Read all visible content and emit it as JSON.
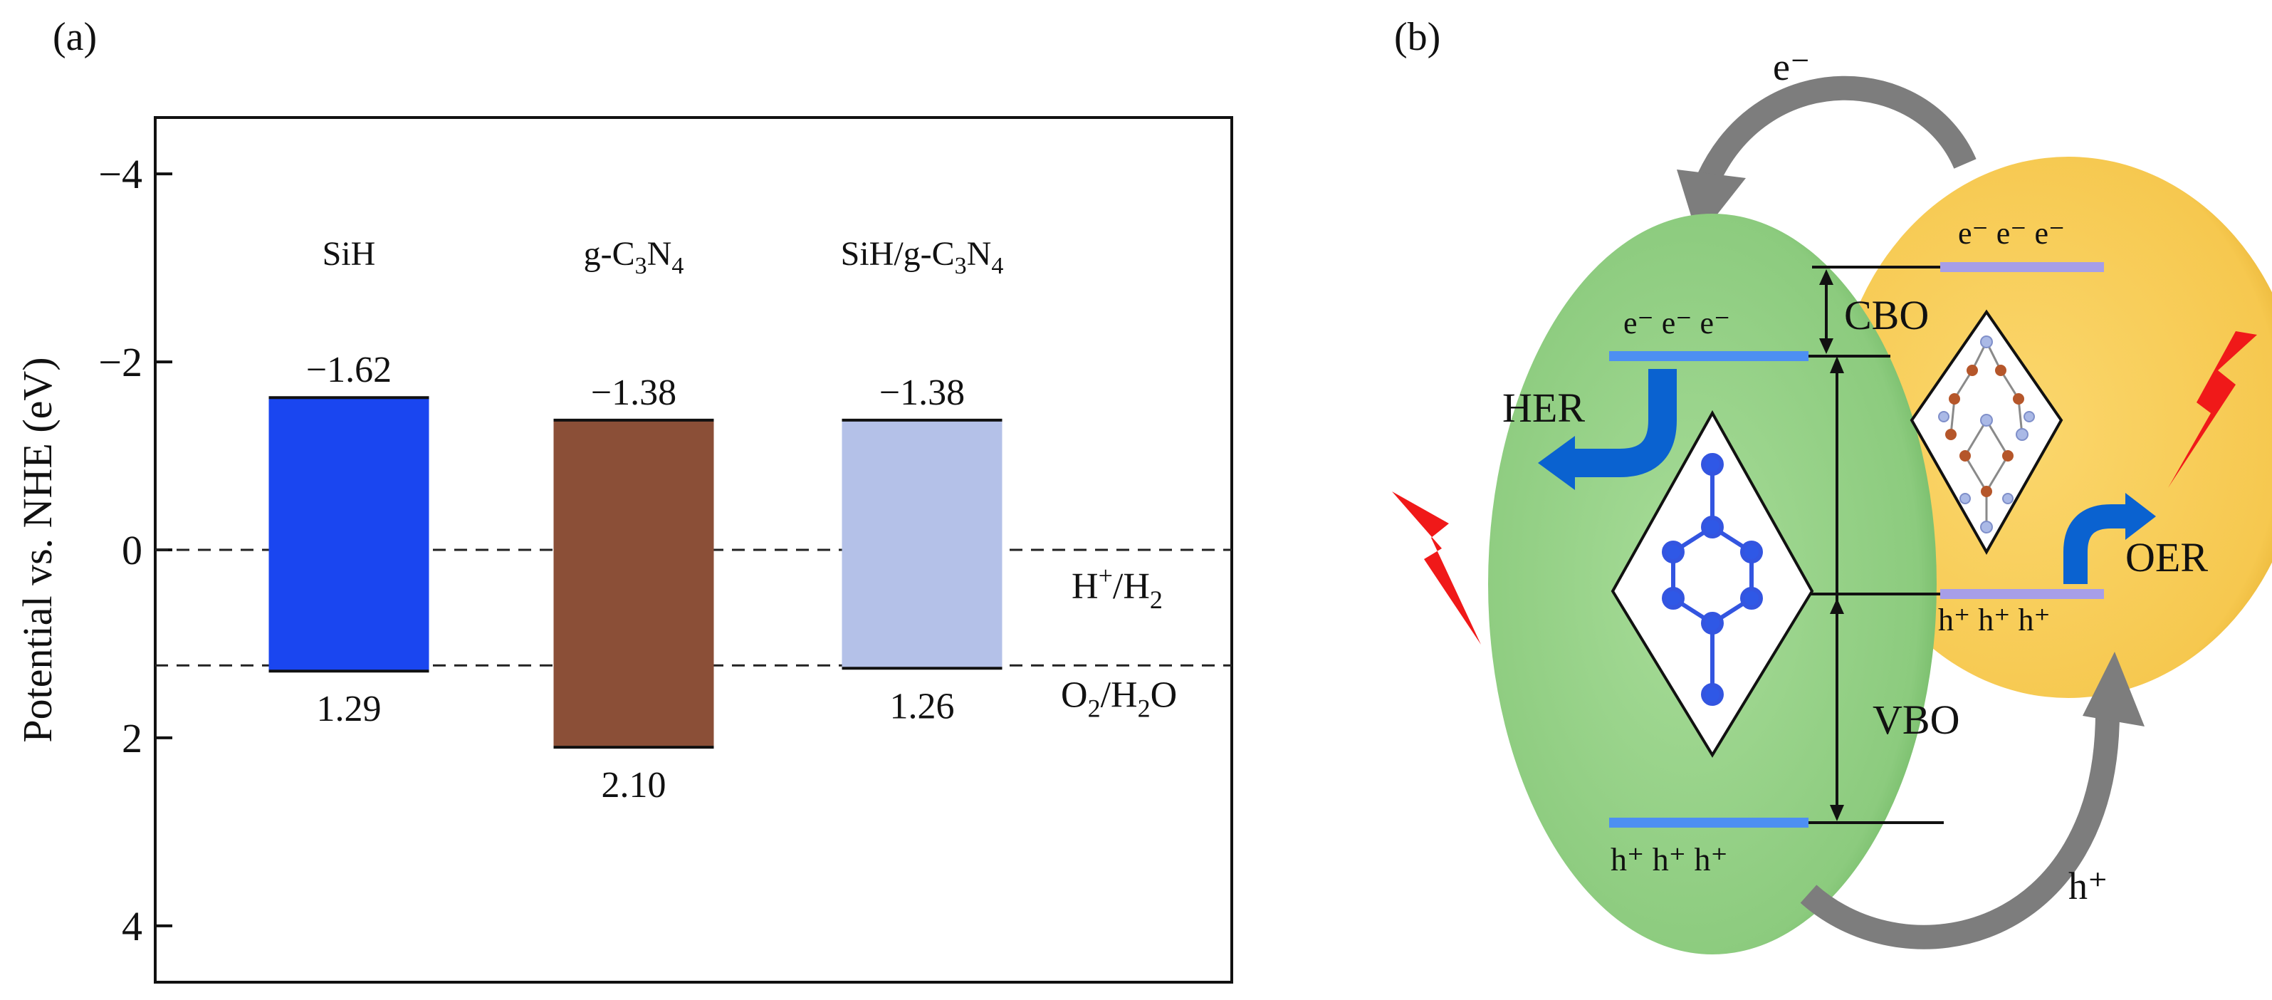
{
  "panels": {
    "a_label": "(a)",
    "b_label": "(b)"
  },
  "chart_data": {
    "type": "bar",
    "title": "",
    "ylabel": "Potential vs. NHE (eV)",
    "ylim": [
      -4.6,
      4.6
    ],
    "y_inverted": true,
    "yticks": [
      -4,
      -2,
      0,
      2,
      4
    ],
    "ytick_labels": [
      "−4",
      "−2",
      "0",
      "2",
      "4"
    ],
    "grid": false,
    "legend": "none",
    "categories": [
      {
        "name": "SiH",
        "base": "SiH",
        "sub": ""
      },
      {
        "name": "g-C3N4",
        "base": "g-C",
        "parts": [
          [
            "C",
            "3"
          ],
          [
            "N",
            "4"
          ]
        ]
      },
      {
        "name": "SiH/g-C3N4",
        "base": "SiH/g-C",
        "parts": [
          [
            "C",
            "3"
          ],
          [
            "N",
            "4"
          ]
        ]
      }
    ],
    "cbm": [
      -1.62,
      -1.38,
      -1.38
    ],
    "vbm": [
      1.29,
      2.1,
      1.26
    ],
    "cbm_labels": [
      "−1.62",
      "−1.38",
      "−1.38"
    ],
    "vbm_labels": [
      "1.29",
      "2.10",
      "1.26"
    ],
    "colors": [
      "#1a46f0",
      "#8b4f37",
      "#b4c1e8"
    ],
    "reference_lines": [
      {
        "value": 0,
        "label_main": "H",
        "label_sup": "+",
        "label_rest": "/H",
        "label_sub": "2"
      },
      {
        "value": 1.23,
        "label_main": "O",
        "label_sub": "2",
        "label_rest": "/H",
        "label_sub2": "2",
        "label_tail": "O"
      }
    ]
  },
  "diagram": {
    "electron_top": "e⁻",
    "hole_bottom": "h⁺",
    "green_cb_carriers": "e⁻ e⁻ e⁻",
    "green_vb_carriers": "h⁺ h⁺ h⁺",
    "yellow_cb_carriers": "e⁻ e⁻ e⁻",
    "yellow_vb_carriers": "h⁺ h⁺ h⁺",
    "cbo_label": "CBO",
    "vbo_label": "VBO",
    "her_label": "HER",
    "oer_label": "OER",
    "colors": {
      "green": "#8ecf81",
      "yellow": "#f8cd57",
      "level_green": "#4d8ff2",
      "level_yellow": "#a79ee8",
      "arrow_blue": "#0a62d0",
      "bolt": "#f01919",
      "curve_arrow": "#7b7b7b"
    }
  }
}
